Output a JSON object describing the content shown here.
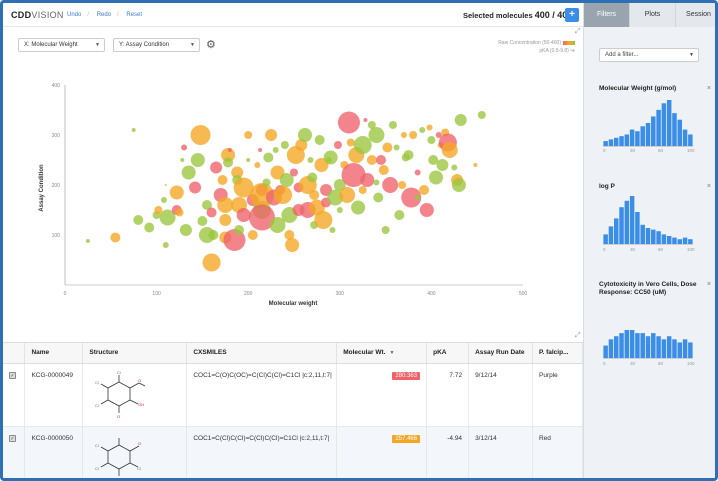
{
  "app": {
    "logo_main": "CDD",
    "logo_sub": "VISION",
    "undo": "Undo",
    "redo": "Redo",
    "reset": "Reset",
    "selected_label": "Selected molecules",
    "selected_count": "400 / 400",
    "add_button": "+"
  },
  "controls": {
    "x_select": "X: Molecular Weight",
    "y_select": "Y: Assay Condition",
    "legend_color": "Raw Concentration (50-400)",
    "legend_size": "pKA (0.5-9.8)"
  },
  "chart_data": {
    "type": "scatter",
    "xlabel": "Molecular weight",
    "ylabel": "Assay Condition",
    "xlim": [
      0,
      500
    ],
    "ylim": [
      0,
      400
    ],
    "xticks": [
      "0",
      "100",
      "200",
      "300",
      "400",
      "500"
    ],
    "yticks": [
      "100",
      "200",
      "300",
      "400"
    ],
    "colors": {
      "red": "#f0626a",
      "orange": "#f5a623",
      "green": "#9bc53d"
    },
    "points": [
      [
        25,
        88,
        2,
        "g"
      ],
      [
        55,
        95,
        5,
        "o"
      ],
      [
        75,
        310,
        2,
        "g"
      ],
      [
        80,
        130,
        5,
        "g"
      ],
      [
        92,
        115,
        5,
        "g"
      ],
      [
        100,
        140,
        4,
        "g"
      ],
      [
        102,
        150,
        4,
        "o"
      ],
      [
        108,
        170,
        3,
        "g"
      ],
      [
        110,
        200,
        1,
        "o"
      ],
      [
        110,
        80,
        3,
        "g"
      ],
      [
        112,
        135,
        8,
        "g"
      ],
      [
        122,
        185,
        7,
        "o"
      ],
      [
        122,
        150,
        5,
        "r"
      ],
      [
        125,
        145,
        4,
        "o"
      ],
      [
        128,
        250,
        2,
        "g"
      ],
      [
        130,
        275,
        3,
        "r"
      ],
      [
        132,
        110,
        6,
        "g"
      ],
      [
        135,
        225,
        7,
        "g"
      ],
      [
        142,
        195,
        6,
        "r"
      ],
      [
        145,
        250,
        7,
        "g"
      ],
      [
        148,
        300,
        10,
        "o"
      ],
      [
        150,
        128,
        5,
        "g"
      ],
      [
        155,
        160,
        5,
        "g"
      ],
      [
        155,
        100,
        8,
        "g"
      ],
      [
        160,
        145,
        5,
        "r"
      ],
      [
        160,
        45,
        9,
        "o"
      ],
      [
        162,
        100,
        5,
        "g"
      ],
      [
        165,
        235,
        6,
        "r"
      ],
      [
        170,
        180,
        7,
        "r"
      ],
      [
        172,
        210,
        5,
        "o"
      ],
      [
        175,
        160,
        8,
        "o"
      ],
      [
        175,
        130,
        6,
        "o"
      ],
      [
        175,
        95,
        6,
        "o"
      ],
      [
        178,
        260,
        7,
        "o"
      ],
      [
        178,
        245,
        5,
        "g"
      ],
      [
        180,
        270,
        2,
        "r"
      ],
      [
        185,
        90,
        11,
        "r"
      ],
      [
        188,
        225,
        6,
        "o"
      ],
      [
        188,
        210,
        5,
        "g"
      ],
      [
        190,
        160,
        8,
        "o"
      ],
      [
        190,
        110,
        5,
        "g"
      ],
      [
        195,
        195,
        10,
        "o"
      ],
      [
        195,
        140,
        7,
        "r"
      ],
      [
        200,
        250,
        2,
        "g"
      ],
      [
        200,
        300,
        4,
        "o"
      ],
      [
        205,
        100,
        5,
        "o"
      ],
      [
        205,
        170,
        6,
        "r"
      ],
      [
        210,
        160,
        4,
        "o"
      ],
      [
        210,
        240,
        3,
        "o"
      ],
      [
        213,
        270,
        2,
        "r"
      ],
      [
        215,
        150,
        9,
        "g"
      ],
      [
        215,
        190,
        6,
        "r"
      ],
      [
        215,
        180,
        12,
        "o"
      ],
      [
        215,
        135,
        13,
        "r"
      ],
      [
        220,
        205,
        4,
        "g"
      ],
      [
        222,
        255,
        5,
        "g"
      ],
      [
        225,
        300,
        6,
        "o"
      ],
      [
        228,
        175,
        8,
        "r"
      ],
      [
        230,
        270,
        3,
        "g"
      ],
      [
        232,
        225,
        7,
        "o"
      ],
      [
        232,
        120,
        8,
        "g"
      ],
      [
        235,
        190,
        5,
        "r"
      ],
      [
        238,
        180,
        9,
        "o"
      ],
      [
        240,
        280,
        4,
        "g"
      ],
      [
        242,
        210,
        7,
        "g"
      ],
      [
        245,
        140,
        8,
        "g"
      ],
      [
        245,
        100,
        5,
        "o"
      ],
      [
        248,
        80,
        7,
        "o"
      ],
      [
        250,
        225,
        4,
        "r"
      ],
      [
        252,
        260,
        9,
        "o"
      ],
      [
        255,
        150,
        6,
        "r"
      ],
      [
        255,
        195,
        5,
        "r"
      ],
      [
        258,
        280,
        6,
        "o"
      ],
      [
        262,
        300,
        7,
        "g"
      ],
      [
        265,
        150,
        8,
        "r"
      ],
      [
        265,
        200,
        9,
        "o"
      ],
      [
        268,
        250,
        3,
        "g"
      ],
      [
        270,
        215,
        5,
        "g"
      ],
      [
        272,
        180,
        5,
        "o"
      ],
      [
        272,
        120,
        4,
        "g"
      ],
      [
        275,
        155,
        8,
        "o"
      ],
      [
        278,
        290,
        5,
        "g"
      ],
      [
        280,
        240,
        7,
        "o"
      ],
      [
        282,
        130,
        9,
        "o"
      ],
      [
        285,
        165,
        5,
        "r"
      ],
      [
        285,
        190,
        6,
        "r"
      ],
      [
        288,
        250,
        3,
        "g"
      ],
      [
        290,
        255,
        7,
        "g"
      ],
      [
        292,
        110,
        3,
        "g"
      ],
      [
        295,
        175,
        8,
        "g"
      ],
      [
        298,
        280,
        4,
        "r"
      ],
      [
        300,
        200,
        6,
        "g"
      ],
      [
        300,
        150,
        3,
        "g"
      ],
      [
        305,
        240,
        4,
        "o"
      ],
      [
        308,
        180,
        8,
        "o"
      ],
      [
        310,
        325,
        11,
        "r"
      ],
      [
        312,
        285,
        4,
        "o"
      ],
      [
        315,
        220,
        12,
        "r"
      ],
      [
        318,
        260,
        8,
        "o"
      ],
      [
        320,
        155,
        7,
        "g"
      ],
      [
        325,
        280,
        9,
        "g"
      ],
      [
        325,
        190,
        4,
        "o"
      ],
      [
        328,
        330,
        2,
        "r"
      ],
      [
        330,
        210,
        7,
        "r"
      ],
      [
        335,
        250,
        5,
        "o"
      ],
      [
        335,
        320,
        4,
        "g"
      ],
      [
        340,
        205,
        3,
        "g"
      ],
      [
        340,
        300,
        8,
        "g"
      ],
      [
        342,
        175,
        5,
        "g"
      ],
      [
        345,
        250,
        5,
        "r"
      ],
      [
        348,
        230,
        5,
        "o"
      ],
      [
        350,
        110,
        4,
        "g"
      ],
      [
        352,
        275,
        5,
        "o"
      ],
      [
        355,
        200,
        8,
        "r"
      ],
      [
        358,
        320,
        4,
        "g"
      ],
      [
        362,
        275,
        3,
        "g"
      ],
      [
        365,
        140,
        5,
        "g"
      ],
      [
        368,
        200,
        4,
        "o"
      ],
      [
        370,
        300,
        3,
        "o"
      ],
      [
        372,
        255,
        4,
        "g"
      ],
      [
        375,
        260,
        5,
        "g"
      ],
      [
        378,
        175,
        10,
        "r"
      ],
      [
        380,
        300,
        4,
        "o"
      ],
      [
        385,
        225,
        3,
        "r"
      ],
      [
        385,
        175,
        3,
        "g"
      ],
      [
        390,
        310,
        3,
        "g"
      ],
      [
        392,
        190,
        5,
        "o"
      ],
      [
        395,
        150,
        7,
        "r"
      ],
      [
        398,
        315,
        3,
        "o"
      ],
      [
        400,
        290,
        4,
        "g"
      ],
      [
        402,
        250,
        5,
        "g"
      ],
      [
        405,
        215,
        7,
        "g"
      ],
      [
        408,
        300,
        3,
        "r"
      ],
      [
        410,
        280,
        3,
        "o"
      ],
      [
        412,
        240,
        6,
        "g"
      ],
      [
        415,
        305,
        4,
        "o"
      ],
      [
        418,
        285,
        9,
        "r"
      ],
      [
        420,
        270,
        8,
        "o"
      ],
      [
        425,
        235,
        3,
        "g"
      ],
      [
        428,
        210,
        6,
        "o"
      ],
      [
        430,
        200,
        7,
        "g"
      ],
      [
        432,
        330,
        6,
        "g"
      ],
      [
        448,
        240,
        2,
        "o"
      ],
      [
        455,
        340,
        4,
        "g"
      ]
    ]
  },
  "table": {
    "columns": [
      "",
      "Name",
      "Structure",
      "CXSMILES",
      "Molecular Wt.",
      "pKA",
      "Assay Run Date",
      "P. falcip..."
    ],
    "rows": [
      {
        "name": "KCG-0000049",
        "smiles": "COC1=C(O)C(OC)=C(Cl)C(Cl)=C1Cl |c:2,11,t:7|",
        "mw": "280.363",
        "mw_color": "#f0626a",
        "pka": "7.72",
        "date": "9/12/14",
        "pf": "Purple"
      },
      {
        "name": "KCG-0000050",
        "smiles": "COC1=C(Cl)C(Cl)=C(Cl)C(Cl)=C1Cl |c:2,11,t:7|",
        "mw": "257.466",
        "mw_color": "#f5a623",
        "pka": "-4.94",
        "date": "3/12/14",
        "pf": "Red"
      }
    ]
  },
  "panel": {
    "tabs": [
      "Filters",
      "Plots",
      "Session"
    ],
    "add_filter": "Add a filter...",
    "filters": [
      {
        "title": "Molecular Weight (g/mol)",
        "bars": [
          3,
          4,
          5,
          6,
          7,
          10,
          9,
          12,
          14,
          18,
          22,
          26,
          28,
          20,
          16,
          10,
          7
        ],
        "ticks": [
          "0",
          "30",
          "60",
          "100"
        ]
      },
      {
        "title": "log P",
        "bars": [
          6,
          11,
          16,
          23,
          27,
          30,
          20,
          12,
          10,
          9,
          8,
          6,
          5,
          4,
          3,
          4,
          3
        ],
        "ticks": [
          "0",
          "30",
          "60",
          "100"
        ]
      },
      {
        "title": "Cytotoxicity in Vero Cells, Dose Response: CC50 (uM)",
        "bars": [
          4,
          6,
          7,
          8,
          9,
          9,
          8,
          8,
          7,
          8,
          7,
          6,
          7,
          6,
          5,
          6,
          5
        ],
        "ticks": [
          "0",
          "30",
          "60",
          "100"
        ]
      }
    ]
  }
}
